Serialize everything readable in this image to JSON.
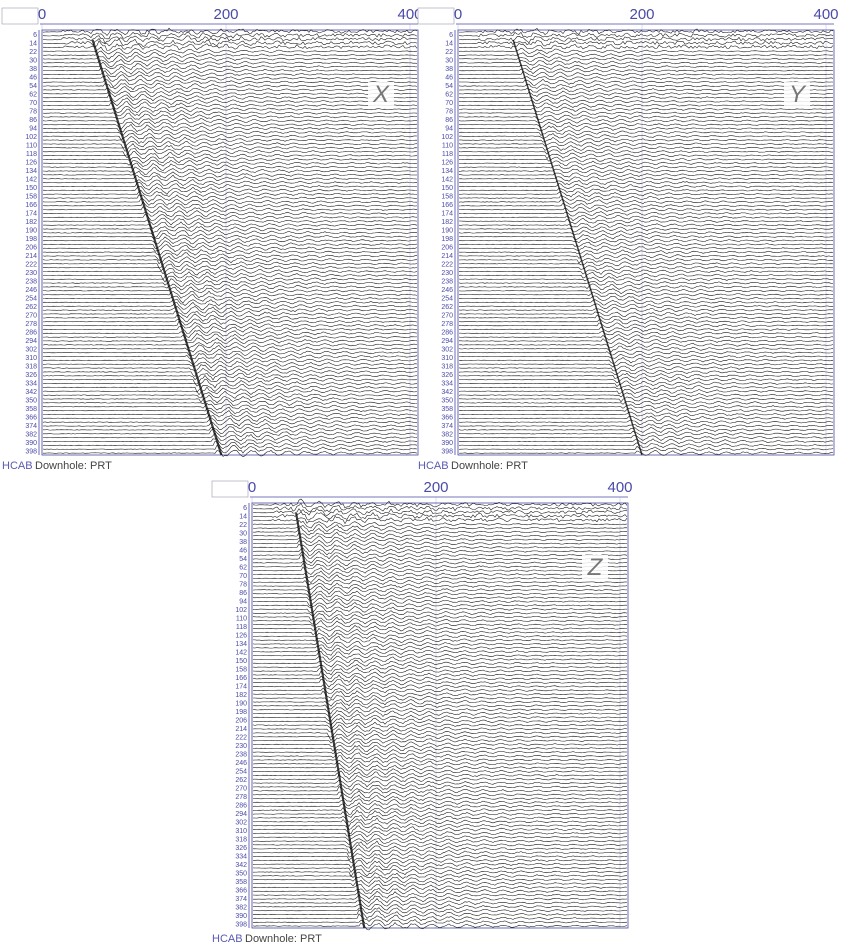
{
  "panels": [
    {
      "component": "X",
      "xticks": [
        0,
        200,
        400
      ],
      "depths": [
        6,
        14,
        22,
        30,
        38,
        46,
        54,
        62,
        70,
        78,
        86,
        94,
        102,
        110,
        118,
        126,
        134,
        142,
        150,
        158,
        166,
        174,
        182,
        190,
        198,
        206,
        214,
        222,
        230,
        238,
        246,
        254,
        262,
        270,
        278,
        286,
        294,
        302,
        310,
        318,
        326,
        334,
        342,
        350,
        358,
        366,
        374,
        382,
        390,
        398
      ],
      "footer_left": "HCAB",
      "footer_right": "Downhole: PRT"
    },
    {
      "component": "Y",
      "xticks": [
        0,
        200,
        400
      ],
      "depths": [
        6,
        14,
        22,
        30,
        38,
        46,
        54,
        62,
        70,
        78,
        86,
        94,
        102,
        110,
        118,
        126,
        134,
        142,
        150,
        158,
        166,
        174,
        182,
        190,
        198,
        206,
        214,
        222,
        230,
        238,
        246,
        254,
        262,
        270,
        278,
        286,
        294,
        302,
        310,
        318,
        326,
        334,
        342,
        350,
        358,
        366,
        374,
        382,
        390,
        398
      ],
      "footer_left": "HCAB",
      "footer_right": "Downhole: PRT"
    },
    {
      "component": "Z",
      "xticks": [
        0,
        200,
        400
      ],
      "depths": [
        6,
        14,
        22,
        30,
        38,
        46,
        54,
        62,
        70,
        78,
        86,
        94,
        102,
        110,
        118,
        126,
        134,
        142,
        150,
        158,
        166,
        174,
        182,
        190,
        198,
        206,
        214,
        222,
        230,
        238,
        246,
        254,
        262,
        270,
        278,
        286,
        294,
        302,
        310,
        318,
        326,
        334,
        342,
        350,
        358,
        366,
        374,
        382,
        390,
        398
      ],
      "footer_left": "HCAB",
      "footer_right": "Downhole: PRT"
    }
  ]
}
